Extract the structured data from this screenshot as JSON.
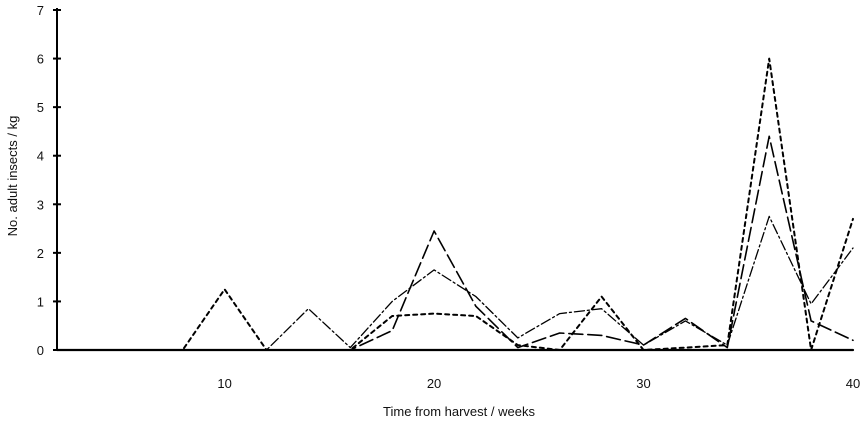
{
  "chart_data": {
    "type": "line",
    "xlabel": "Time from harvest / weeks",
    "ylabel": "No. adult insects / kg",
    "xlim": [
      2,
      40
    ],
    "ylim": [
      0,
      7
    ],
    "x_ticks": [
      10,
      20,
      30,
      40
    ],
    "y_ticks": [
      0,
      1,
      2,
      3,
      4,
      5,
      6,
      7
    ],
    "grid": false,
    "series": [
      {
        "style": "short-dash",
        "x": [
          2,
          8,
          10,
          12,
          14,
          16,
          18,
          20,
          22,
          24,
          26,
          28,
          30,
          32,
          34,
          36,
          38,
          40
        ],
        "values": [
          0,
          0,
          1.25,
          0,
          0,
          0,
          0.7,
          0.75,
          0.7,
          0.1,
          0,
          1.1,
          0,
          0.05,
          0.1,
          6.0,
          0,
          2.7
        ]
      },
      {
        "style": "long-dash",
        "x": [
          2,
          8,
          10,
          12,
          14,
          16,
          18,
          20,
          22,
          24,
          26,
          28,
          30,
          32,
          34,
          36,
          38,
          40
        ],
        "values": [
          0,
          0,
          0,
          0,
          0,
          0,
          0.4,
          2.45,
          0.9,
          0.05,
          0.35,
          0.3,
          0.1,
          0.65,
          0.05,
          4.4,
          0.6,
          0.2
        ]
      },
      {
        "style": "dash-dot",
        "x": [
          2,
          8,
          10,
          12,
          14,
          16,
          18,
          20,
          22,
          24,
          26,
          28,
          30,
          32,
          34,
          36,
          38,
          40
        ],
        "values": [
          0,
          0,
          0,
          0,
          0.85,
          0.05,
          1.0,
          1.65,
          1.1,
          0.25,
          0.75,
          0.85,
          0.1,
          0.6,
          0.1,
          2.75,
          0.95,
          2.1
        ]
      },
      {
        "style": "solid",
        "x": [
          2,
          8,
          10,
          12,
          14,
          16,
          18,
          20,
          22,
          24,
          26,
          28,
          30,
          32,
          34,
          36,
          38,
          40
        ],
        "values": [
          0,
          0,
          0,
          0,
          0,
          0,
          0,
          0,
          0,
          0,
          0,
          0,
          0,
          0,
          0,
          0,
          0,
          0
        ]
      }
    ]
  }
}
